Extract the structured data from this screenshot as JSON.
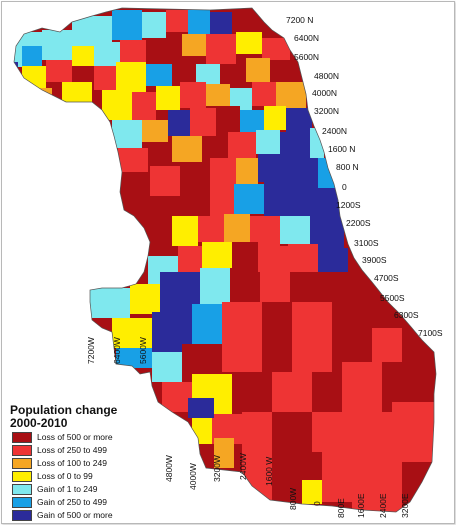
{
  "legend": {
    "title": "Population change\n2000-2010",
    "items": [
      {
        "label": "Loss of 500 or more",
        "color": "#a80f14"
      },
      {
        "label": "Loss of 250 to 499",
        "color": "#ee3434"
      },
      {
        "label": "Loss of 100 to 249",
        "color": "#f5a623"
      },
      {
        "label": "Loss of 0 to 99",
        "color": "#ffee00"
      },
      {
        "label": "Gain of 1 to 249",
        "color": "#7fe8ee"
      },
      {
        "label": "Gain of 250 to 499",
        "color": "#18a0e6"
      },
      {
        "label": "Gain of 500 or more",
        "color": "#2b2b9a"
      }
    ]
  },
  "street_labels": {
    "north_south": [
      "7200 N",
      "6400N",
      "5600N",
      "4800N",
      "4000N",
      "3200N",
      "2400N",
      "1600 N",
      "800 N",
      "0",
      "1200S",
      "2200S",
      "3100S",
      "3900S",
      "4700S",
      "5500S",
      "6300S",
      "7100S"
    ],
    "west_east_upper": [
      "7200W",
      "6400W",
      "5600W"
    ],
    "west_east_lower": [
      "4800W",
      "4000W",
      "3200W",
      "2400W",
      "1600 W",
      "800W",
      "0",
      "800E",
      "1600E",
      "2400E",
      "3200E"
    ]
  }
}
